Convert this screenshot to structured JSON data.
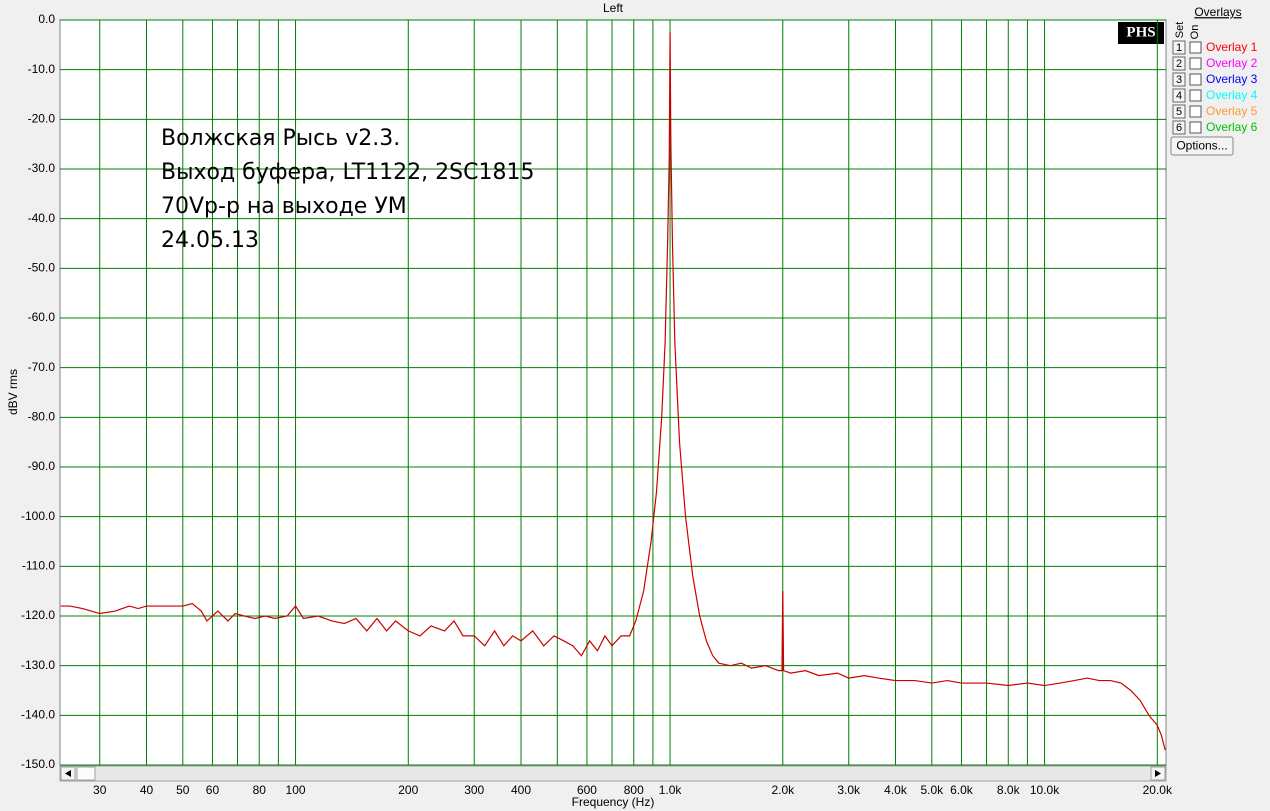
{
  "chart_data": {
    "type": "line",
    "title": "Left",
    "xlabel": "Frequency (Hz)",
    "ylabel": "dBV rms",
    "annotation": [
      "Волжская Рысь v2.3.",
      "Выход буфера, LT1122, 2SC1815",
      "70Vp-p на выходе УМ",
      "24.05.13"
    ],
    "color": "#cc0000",
    "grid_color": "#008000",
    "xscale": "log",
    "grid": true,
    "xlim": [
      23.5,
      21100
    ],
    "ylim": [
      -150,
      0
    ],
    "xticks": [
      30,
      40,
      50,
      60,
      80,
      100,
      200,
      300,
      400,
      600,
      800,
      {
        "value": 1000,
        "label": "1.0k"
      },
      {
        "value": 2000,
        "label": "2.0k"
      },
      {
        "value": 3000,
        "label": "3.0k"
      },
      {
        "value": 4000,
        "label": "4.0k"
      },
      {
        "value": 5000,
        "label": "5.0k"
      },
      {
        "value": 6000,
        "label": "6.0k"
      },
      {
        "value": 8000,
        "label": "8.0k"
      },
      {
        "value": 10000,
        "label": "10.0k"
      },
      {
        "value": 20000,
        "label": "20.0k"
      }
    ],
    "xminor": [
      70,
      90,
      500,
      700,
      900,
      7000,
      9000
    ],
    "yticks": [
      {
        "value": 0,
        "label": "0.0"
      },
      {
        "value": -10,
        "label": "-10.0"
      },
      {
        "value": -20,
        "label": "-20.0"
      },
      {
        "value": -30,
        "label": "-30.0"
      },
      {
        "value": -40,
        "label": "-40.0"
      },
      {
        "value": -50,
        "label": "-50.0"
      },
      {
        "value": -60,
        "label": "-60.0"
      },
      {
        "value": -70,
        "label": "-70.0"
      },
      {
        "value": -80,
        "label": "-80.0"
      },
      {
        "value": -90,
        "label": "-90.0"
      },
      {
        "value": -100,
        "label": "-100.0"
      },
      {
        "value": -110,
        "label": "-110.0"
      },
      {
        "value": -120,
        "label": "-120.0"
      },
      {
        "value": -130,
        "label": "-130.0"
      },
      {
        "value": -140,
        "label": "-140.0"
      },
      {
        "value": -150,
        "label": "-150.0"
      }
    ],
    "x": [
      23.6,
      25,
      27,
      30,
      33,
      36,
      38,
      40,
      45,
      50,
      53,
      56,
      58,
      62,
      66,
      69,
      73,
      78,
      83,
      88,
      95,
      100,
      105,
      115,
      125,
      135,
      145,
      155,
      165,
      175,
      185,
      200,
      215,
      230,
      250,
      265,
      280,
      300,
      320,
      340,
      360,
      380,
      400,
      430,
      460,
      490,
      520,
      550,
      580,
      610,
      640,
      670,
      700,
      740,
      780,
      810,
      850,
      890,
      920,
      950,
      970,
      985,
      995,
      1000,
      1005,
      1015,
      1030,
      1060,
      1100,
      1150,
      1200,
      1250,
      1300,
      1350,
      1450,
      1550,
      1650,
      1800,
      1950,
      1990,
      2000,
      2010,
      2100,
      2300,
      2500,
      2800,
      3000,
      3300,
      3600,
      4000,
      4500,
      5000,
      5500,
      6000,
      7000,
      8000,
      9000,
      10000,
      11000,
      12000,
      13000,
      14000,
      15000,
      16000,
      17000,
      18000,
      19000,
      20000,
      20500,
      21000
    ],
    "values": [
      -118,
      -118,
      -118.5,
      -119.5,
      -119,
      -118,
      -118.5,
      -118,
      -118,
      -118,
      -117.5,
      -119,
      -121,
      -119,
      -121,
      -119.5,
      -120,
      -120.5,
      -120,
      -120.5,
      -120,
      -118,
      -120.5,
      -120,
      -121,
      -121.5,
      -120.5,
      -123,
      -120.5,
      -123,
      -121,
      -123,
      -124,
      -122,
      -123,
      -121,
      -124,
      -124,
      -126,
      -123,
      -126,
      -124,
      -125,
      -123,
      -126,
      -124,
      -125,
      -126,
      -128,
      -125,
      -127,
      -124,
      -126,
      -124,
      -124,
      -121,
      -115,
      -105,
      -95,
      -80,
      -65,
      -45,
      -28,
      -2.5,
      -25,
      -45,
      -65,
      -85,
      -100,
      -112,
      -120,
      -125,
      -128,
      -129.5,
      -130,
      -129.5,
      -130.5,
      -130,
      -131,
      -131,
      -115,
      -131,
      -131.5,
      -131,
      -132,
      -131.5,
      -132.5,
      -132,
      -132.5,
      -133,
      -133,
      -133.5,
      -133,
      -133.5,
      -133.5,
      -134,
      -133.5,
      -134,
      -133.5,
      -133,
      -132.5,
      -133,
      -133,
      -133.5,
      -135,
      -137,
      -140,
      -142,
      -144,
      -147
    ]
  },
  "logo": "PHS",
  "overlays": {
    "title": "Overlays",
    "set": "Set",
    "on": "On",
    "options": "Options...",
    "items": [
      {
        "index": "1",
        "label": "Overlay 1",
        "color": "#ff0000"
      },
      {
        "index": "2",
        "label": "Overlay 2",
        "color": "#ff00ff"
      },
      {
        "index": "3",
        "label": "Overlay 3",
        "color": "#0000ff"
      },
      {
        "index": "4",
        "label": "Overlay 4",
        "color": "#00ffff"
      },
      {
        "index": "5",
        "label": "Overlay 5",
        "color": "#ff9933"
      },
      {
        "index": "6",
        "label": "Overlay 6",
        "color": "#00c000"
      }
    ]
  }
}
